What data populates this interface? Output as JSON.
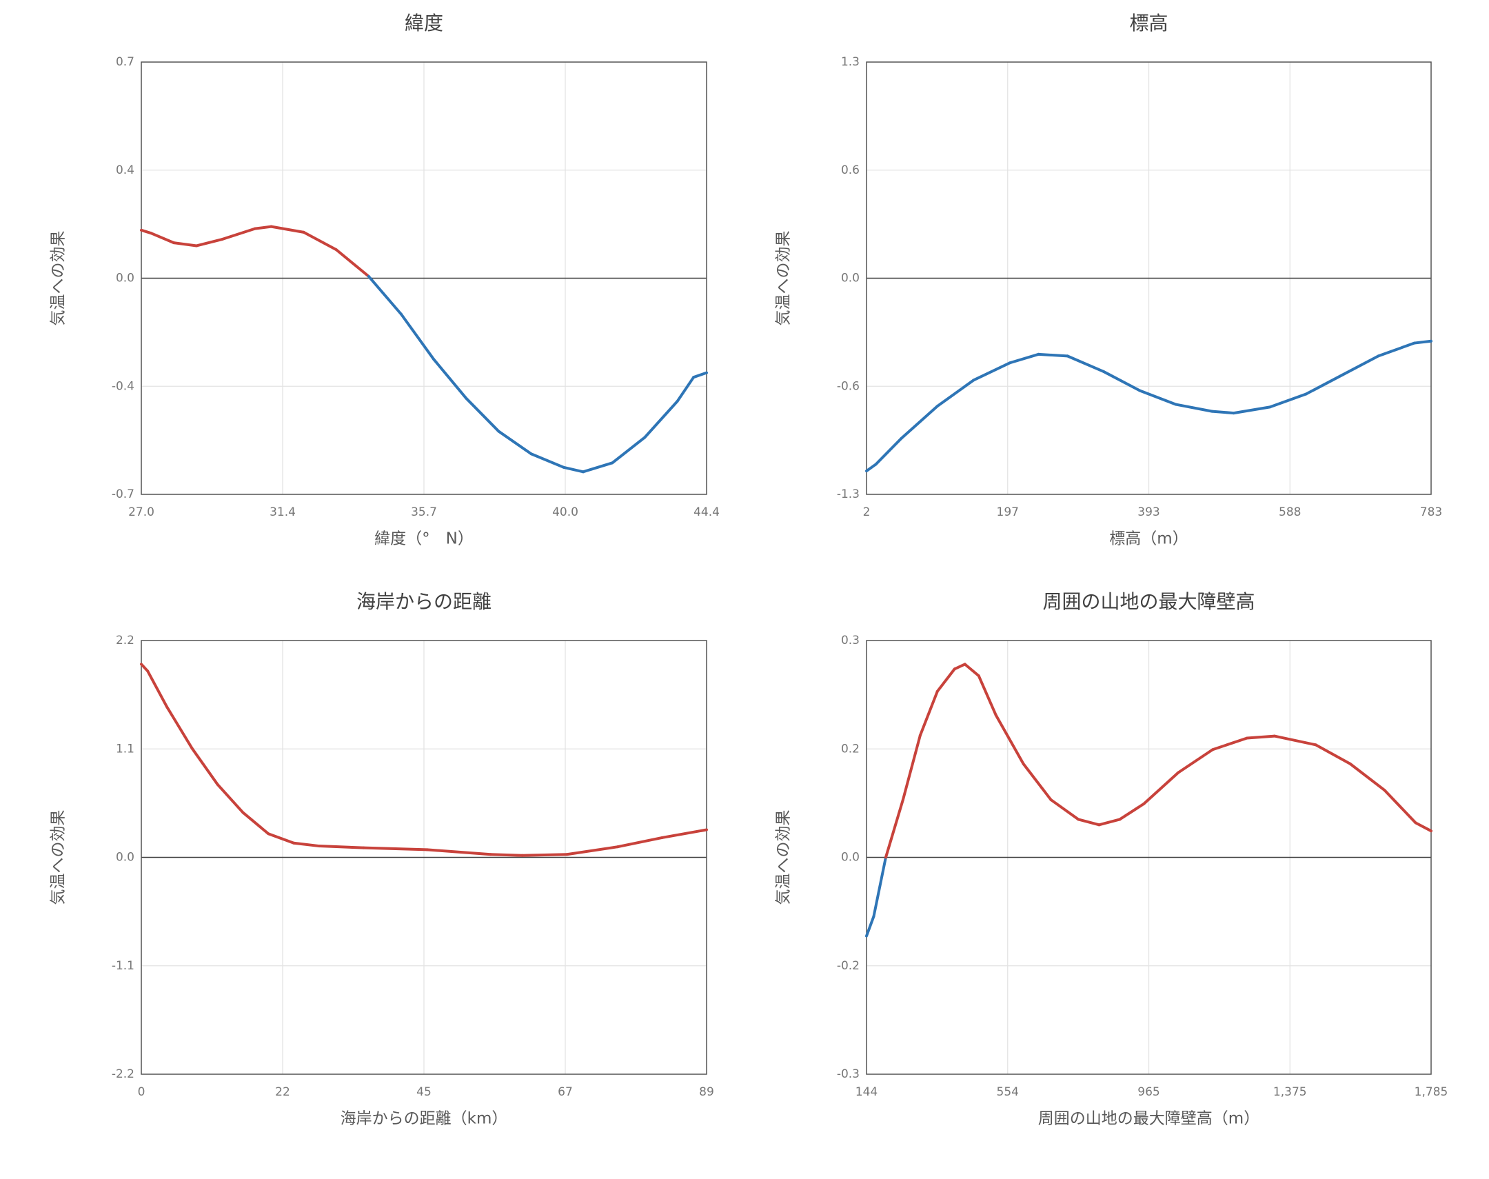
{
  "chart_data": [
    {
      "type": "line",
      "title": "緯度",
      "xlabel": "緯度（°　N）",
      "ylabel": "気温への効果",
      "x": [
        27.0,
        27.3,
        28.0,
        28.7,
        29.5,
        30.5,
        31.0,
        32.0,
        33.0,
        34.0,
        35.0,
        36.0,
        37.0,
        38.0,
        39.0,
        40.0,
        40.6,
        41.5,
        42.5,
        43.5,
        44.0,
        44.4
      ],
      "values": [
        0.16,
        0.15,
        0.118,
        0.108,
        0.13,
        0.165,
        0.172,
        0.153,
        0.095,
        0.006,
        -0.12,
        -0.27,
        -0.4,
        -0.51,
        -0.585,
        -0.63,
        -0.645,
        -0.615,
        -0.53,
        -0.41,
        -0.33,
        -0.315
      ],
      "xlim": [
        27.0,
        44.4
      ],
      "ylim": [
        -0.72,
        0.72
      ],
      "xticks": [
        {
          "value": 27.0,
          "label": "27.0"
        },
        {
          "value": 31.35,
          "label": "31.4"
        },
        {
          "value": 35.7,
          "label": "35.7"
        },
        {
          "value": 40.05,
          "label": "40.0"
        },
        {
          "value": 44.4,
          "label": "44.4"
        }
      ],
      "yticks": [
        {
          "value": 0.72,
          "label": "0.7"
        },
        {
          "value": 0.36,
          "label": "0.4"
        },
        {
          "value": 0,
          "label": "0.0"
        },
        {
          "value": -0.36,
          "label": "-0.4"
        },
        {
          "value": -0.72,
          "label": "-0.7"
        }
      ],
      "positive_color": "#c8423b",
      "negative_color": "#2e75b6",
      "grid": true
    },
    {
      "type": "line",
      "title": "標高",
      "xlabel": "標高（m）",
      "ylabel": "気温への効果",
      "x": [
        2,
        15,
        50,
        100,
        150,
        200,
        240,
        280,
        330,
        380,
        430,
        480,
        510,
        560,
        610,
        660,
        710,
        760,
        783
      ],
      "values": [
        -1.115,
        -1.076,
        -0.927,
        -0.74,
        -0.59,
        -0.49,
        -0.44,
        -0.45,
        -0.54,
        -0.65,
        -0.73,
        -0.77,
        -0.78,
        -0.745,
        -0.67,
        -0.56,
        -0.45,
        -0.375,
        -0.364
      ],
      "xlim": [
        2,
        783
      ],
      "ylim": [
        -1.25,
        1.25
      ],
      "xticks": [
        2,
        {
          "value": 197.25,
          "label": "197"
        },
        {
          "value": 392.5,
          "label": "393"
        },
        {
          "value": 587.75,
          "label": "588"
        },
        783
      ],
      "yticks": [
        {
          "value": 1.25,
          "label": "1.3"
        },
        {
          "value": 0.625,
          "label": "0.6"
        },
        {
          "value": 0,
          "label": "0.0"
        },
        {
          "value": -0.625,
          "label": "-0.6"
        },
        {
          "value": -1.25,
          "label": "-1.3"
        }
      ],
      "positive_color": "#c8423b",
      "negative_color": "#2e75b6",
      "grid": true
    },
    {
      "type": "line",
      "title": "海岸からの距離",
      "xlabel": "海岸からの距離（km）",
      "ylabel": "気温への効果",
      "x": [
        0,
        1,
        4,
        8,
        12,
        16,
        20,
        24,
        28,
        35,
        45,
        55,
        60,
        67,
        75,
        82,
        89
      ],
      "values": [
        1.96,
        1.89,
        1.53,
        1.105,
        0.74,
        0.455,
        0.24,
        0.145,
        0.115,
        0.097,
        0.078,
        0.03,
        0.019,
        0.03,
        0.107,
        0.2,
        0.28
      ],
      "xlim": [
        0,
        89
      ],
      "ylim": [
        -2.2,
        2.2
      ],
      "xticks": [
        0,
        {
          "value": 22.25,
          "label": "22"
        },
        {
          "value": 44.5,
          "label": "45"
        },
        {
          "value": 66.75,
          "label": "67"
        },
        89
      ],
      "yticks": [
        2.2,
        1.1,
        {
          "value": 0,
          "label": "0.0"
        },
        -1.1,
        -2.2
      ],
      "positive_color": "#c8423b",
      "negative_color": "#2e75b6",
      "grid": true
    },
    {
      "type": "line",
      "title": "周囲の山地の最大障壁高",
      "xlabel": "周囲の山地の最大障壁高（m）",
      "ylabel": "気温への効果",
      "x": [
        144,
        165,
        200,
        250,
        300,
        350,
        400,
        430,
        470,
        520,
        600,
        680,
        760,
        820,
        880,
        950,
        1050,
        1150,
        1250,
        1330,
        1450,
        1550,
        1650,
        1740,
        1785
      ],
      "values": [
        -0.116,
        -0.087,
        0,
        0.085,
        0.18,
        0.245,
        0.278,
        0.285,
        0.268,
        0.21,
        0.138,
        0.085,
        0.056,
        0.048,
        0.056,
        0.079,
        0.125,
        0.159,
        0.176,
        0.179,
        0.166,
        0.138,
        0.099,
        0.051,
        0.039
      ],
      "xlim": [
        144,
        1785
      ],
      "ylim": [
        -0.32,
        0.32
      ],
      "xticks": [
        144,
        {
          "value": 554.25,
          "label": "554"
        },
        {
          "value": 964.5,
          "label": "965"
        },
        {
          "value": 1374.75,
          "label": "1,375"
        },
        {
          "value": 1785,
          "label": "1,785"
        }
      ],
      "yticks": [
        {
          "value": 0.32,
          "label": "0.3"
        },
        {
          "value": 0.16,
          "label": "0.2"
        },
        {
          "value": 0,
          "label": "0.0"
        },
        {
          "value": -0.16,
          "label": "-0.2"
        },
        {
          "value": -0.32,
          "label": "-0.3"
        }
      ],
      "positive_color": "#c8423b",
      "negative_color": "#2e75b6",
      "grid": true
    }
  ]
}
